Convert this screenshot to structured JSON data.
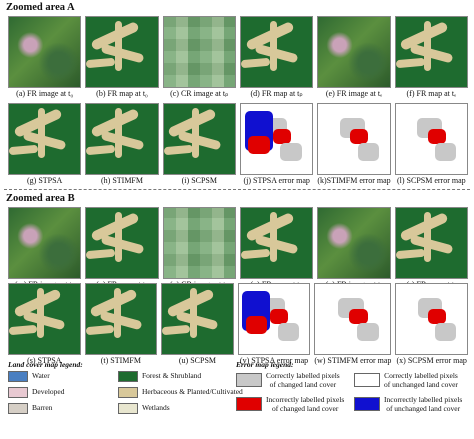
{
  "zoom_a_title": "Zoomed area A",
  "zoom_b_title": "Zoomed area B",
  "panels_a_row1": [
    {
      "caption": "(a) FR image at t₀",
      "kind": "sat"
    },
    {
      "caption": "(b) FR map at t₀",
      "kind": "map"
    },
    {
      "caption": "(c) CR image at tₚ",
      "kind": "cr"
    },
    {
      "caption": "(d) FR map at tₚ",
      "kind": "map"
    },
    {
      "caption": "(e) FR image at tₑ",
      "kind": "sat"
    },
    {
      "caption": "(f) FR map at tₑ",
      "kind": "map"
    }
  ],
  "panels_a_row2": [
    {
      "caption": "(g) STPSA",
      "kind": "map"
    },
    {
      "caption": "(h) STIMFM",
      "kind": "map"
    },
    {
      "caption": "(i) SCPSM",
      "kind": "map"
    },
    {
      "caption": "(j) STPSA error map",
      "kind": "err"
    },
    {
      "caption": "(k)STIMFM error map",
      "kind": "err"
    },
    {
      "caption": "(l) SCPSM error map",
      "kind": "err"
    }
  ],
  "panels_b_row1": [
    {
      "caption": "(m) FR image at t₀",
      "kind": "sat"
    },
    {
      "caption": "(n) FR map at t₀",
      "kind": "map"
    },
    {
      "caption": "(o) CR image at tₚ",
      "kind": "cr"
    },
    {
      "caption": "(p) FR map at tₚ",
      "kind": "map"
    },
    {
      "caption": "(q) FR image at tₑ",
      "kind": "sat"
    },
    {
      "caption": "(r) FR map at tₑ",
      "kind": "map"
    }
  ],
  "panels_b_row2": [
    {
      "caption": "(s) STPSA",
      "kind": "map"
    },
    {
      "caption": "(t) STIMFM",
      "kind": "map"
    },
    {
      "caption": "(u) SCPSM",
      "kind": "map"
    },
    {
      "caption": "(v) STPSA error map",
      "kind": "err"
    },
    {
      "caption": "(w) STIMFM error map",
      "kind": "err"
    },
    {
      "caption": "(x) SCPSM error map",
      "kind": "err"
    }
  ],
  "legend": {
    "land_cover_title": "Land cover map legend:",
    "error_title": "Error map legend:",
    "land_cover_items": [
      {
        "label": "Water",
        "color": "#4a7fc1"
      },
      {
        "label": "Developed",
        "color": "#e8c9d2"
      },
      {
        "label": "Barren",
        "color": "#d6cfc6"
      },
      {
        "label": "Forest & Shrubland",
        "color": "#1e6b2f"
      },
      {
        "label": "Herbaceous & Planted/Cultivated",
        "color": "#d8c89a"
      },
      {
        "label": "Wetlands",
        "color": "#e8e6cf"
      }
    ],
    "error_items": [
      {
        "label_line1": "Correctly labelled pixels",
        "label_line2": "of changed land cover",
        "color": "#c8c8c8"
      },
      {
        "label_line1": "Correctly labelled pixels",
        "label_line2": "of unchanged land cover",
        "color": "#ffffff"
      },
      {
        "label_line1": "Incorrectly labelled pixels",
        "label_line2": "of changed land cover",
        "color": "#e00000"
      },
      {
        "label_line1": "Incorrectly labelled pixels",
        "label_line2": "of unchanged land cover",
        "color": "#1010d0"
      }
    ]
  }
}
